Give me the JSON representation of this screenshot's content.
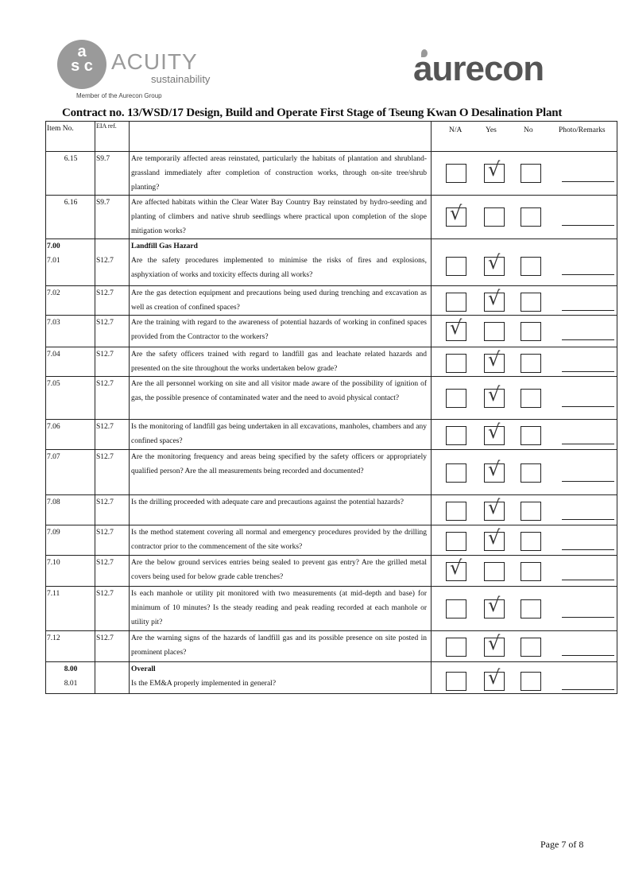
{
  "header": {
    "acuity_logo": {
      "mark": "asc",
      "name": "ACUITY",
      "sub": "sustainability",
      "member": "Member of the Aurecon Group"
    },
    "aurecon_logo": "aurecon",
    "contract_title": "Contract no.  13/WSD/17 Design, Build and Operate First Stage of Tseung Kwan O Desalination Plant"
  },
  "table": {
    "columns": {
      "item": "Item No.",
      "eia": "EIA ref.",
      "na": "N/A",
      "yes": "Yes",
      "no": "No",
      "remarks": "Photo/Remarks"
    },
    "rows": [
      {
        "item": "6.15",
        "eia": "S9.7",
        "question": "Are temporarily affected areas reinstated, particularly the habitats of plantation and shrubland-grassland immediately after completion of construction works, through on-site tree/shrub planting?",
        "answer": "Yes"
      },
      {
        "item": "6.16",
        "eia": "S9.7",
        "question": "Are affected habitats within the Clear Water Bay Country Bay reinstated by hydro-seeding and planting of climbers and native shrub seedlings where practical upon completion of the slope mitigation works?",
        "answer": "N/A"
      },
      {
        "section": "7.00",
        "section_title": "Landfill Gas Hazard",
        "item": "7.01",
        "eia": "S12.7",
        "question": "Are the safety procedures implemented to minimise the risks of fires and explosions, asphyxiation of works and toxicity effects during all works?",
        "answer": "Yes"
      },
      {
        "item": "7.02",
        "eia": "S12.7",
        "question": "Are the gas detection equipment and precautions being used during trenching and excavation as well as creation of confined spaces?",
        "answer": "Yes"
      },
      {
        "item": "7.03",
        "eia": "S12.7",
        "question": "Are the training with regard to the awareness of potential hazards of working in confined spaces provided from the Contractor to the workers?",
        "answer": "N/A"
      },
      {
        "item": "7.04",
        "eia": "S12.7",
        "question": "Are the safety officers trained with regard to landfill gas and leachate related hazards and presented on the site throughout the works undertaken below grade?",
        "answer": "Yes"
      },
      {
        "item": "7.05",
        "eia": "S12.7",
        "question": "Are the all personnel working on site and all visitor made aware of the possibility of ignition of gas, the possible presence of contaminated water and the need to avoid physical contact?",
        "answer": "Yes"
      },
      {
        "item": "7.06",
        "eia": "S12.7",
        "question": "Is the monitoring of landfill gas being undertaken in all excavations, manholes, chambers and any confined spaces?",
        "answer": "Yes"
      },
      {
        "item": "7.07",
        "eia": "S12.7",
        "question": "Are the monitoring frequency and areas being specified by the safety officers or appropriately qualified person? Are the all measurements being recorded and documented?",
        "answer": "Yes"
      },
      {
        "item": "7.08",
        "eia": "S12.7",
        "question": "Is the drilling proceeded with adequate care and precautions against the potential hazards?",
        "answer": "Yes"
      },
      {
        "item": "7.09",
        "eia": "S12.7",
        "question": "Is the method statement covering all normal and emergency procedures provided by the drilling contractor prior to the commencement of the site works?",
        "answer": "Yes"
      },
      {
        "item": "7.10",
        "eia": "S12.7",
        "question": "Are the below ground services entries being sealed to prevent gas entry? Are the grilled metal covers being used for below grade cable trenches?",
        "answer": "N/A"
      },
      {
        "item": "7.11",
        "eia": "S12.7",
        "question": "Is each manhole or utility pit monitored with two measurements (at mid-depth and base) for minimum of 10 minutes? Is the steady reading and peak reading recorded at each manhole or utility pit?",
        "answer": "Yes"
      },
      {
        "item": "7.12",
        "eia": "S12.7",
        "question": "Are the warning signs of the hazards of landfill gas and its possible presence on site posted in prominent places?",
        "answer": "Yes"
      },
      {
        "section": "8.00",
        "section_title": "Overall",
        "item": "8.01",
        "eia": "",
        "question": "Is the EM&A properly implemented in general?",
        "answer": "Yes"
      }
    ]
  },
  "footer": {
    "page": "Page 7 of 8"
  },
  "icons": {
    "tick": "checkmark-icon"
  }
}
